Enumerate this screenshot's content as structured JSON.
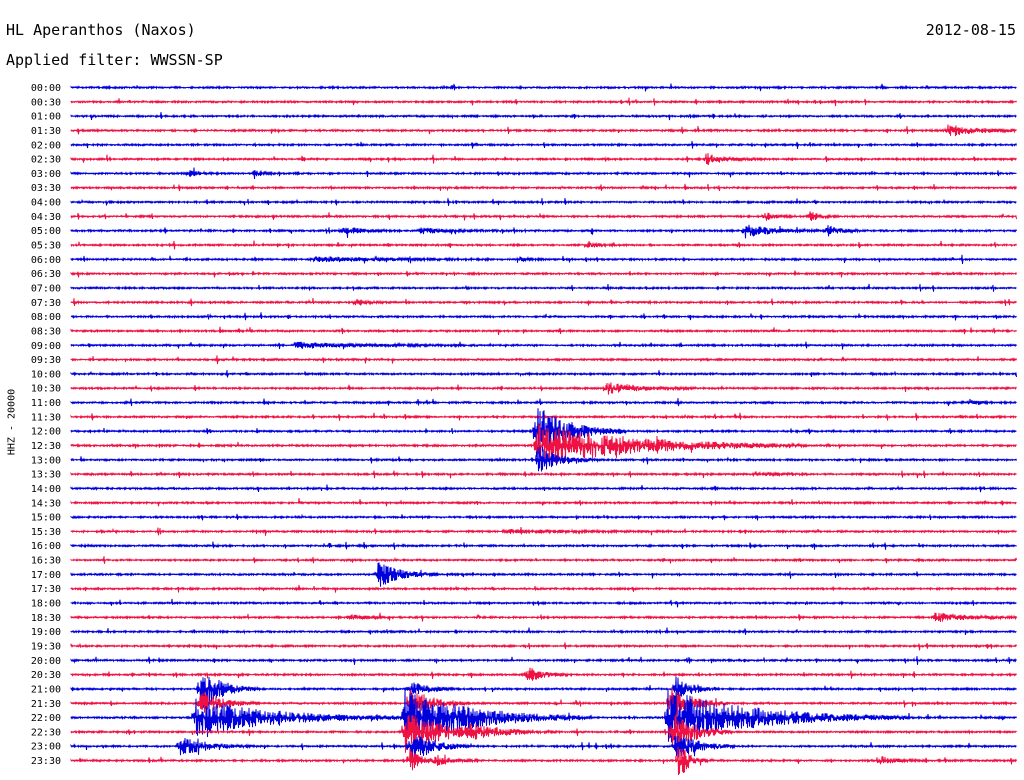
{
  "header": {
    "station": "HL Aperanthos (Naxos)",
    "date": "2012-08-15",
    "filter": "Applied filter: WWSSN-SP"
  },
  "axis": {
    "channel_label": "HHZ - 20000"
  },
  "colors": {
    "even_trace": "#0000dd",
    "odd_trace": "#ee1144",
    "background": "#ffffff",
    "text": "#000000"
  },
  "time_labels": [
    "00:00",
    "00:30",
    "01:00",
    "01:30",
    "02:00",
    "02:30",
    "03:00",
    "03:30",
    "04:00",
    "04:30",
    "05:00",
    "05:30",
    "06:00",
    "06:30",
    "07:00",
    "07:30",
    "08:00",
    "08:30",
    "09:00",
    "09:30",
    "10:00",
    "10:30",
    "11:00",
    "11:30",
    "12:00",
    "12:30",
    "13:00",
    "13:30",
    "14:00",
    "14:30",
    "15:00",
    "15:30",
    "16:00",
    "16:30",
    "17:00",
    "17:30",
    "18:00",
    "18:30",
    "19:00",
    "19:30",
    "20:00",
    "20:30",
    "21:00",
    "21:30",
    "22:00",
    "22:30",
    "23:00",
    "23:30"
  ]
}
